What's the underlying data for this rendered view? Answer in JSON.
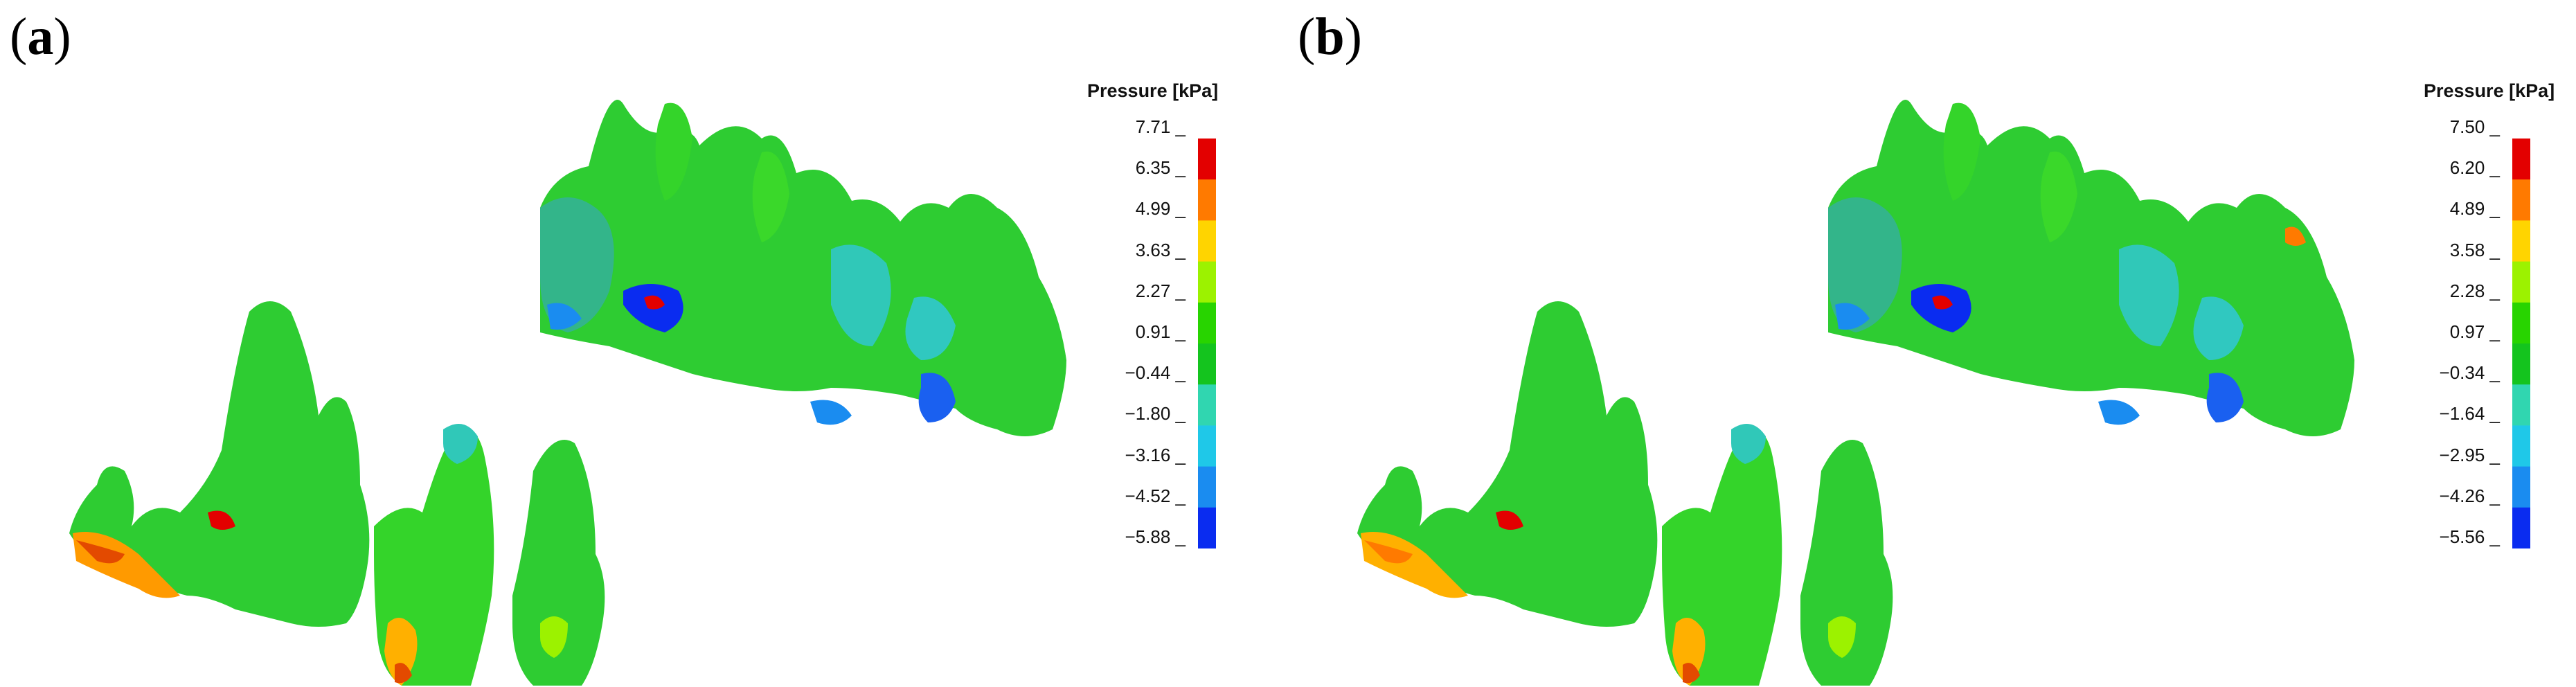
{
  "panels": [
    {
      "id": "a",
      "label": "a",
      "legend": {
        "title": "Pressure [kPa]",
        "ticks": [
          "7.71",
          "6.35",
          "4.99",
          "3.63",
          "2.27",
          "0.91",
          "−0.44",
          "−1.80",
          "−3.16",
          "−4.52",
          "−5.88"
        ]
      }
    },
    {
      "id": "b",
      "label": "b",
      "legend": {
        "title": "Pressure [kPa]",
        "ticks": [
          "7.50",
          "6.20",
          "4.89",
          "3.58",
          "2.28",
          "0.97",
          "−0.34",
          "−1.64",
          "−2.95",
          "−4.26",
          "−5.56"
        ]
      }
    }
  ],
  "colormap": [
    "#e30000",
    "#ff7a00",
    "#ffd400",
    "#9cf200",
    "#28d400",
    "#14c41e",
    "#30d6b0",
    "#1fc8e8",
    "#1a8cf0",
    "#0a2cf0"
  ]
}
